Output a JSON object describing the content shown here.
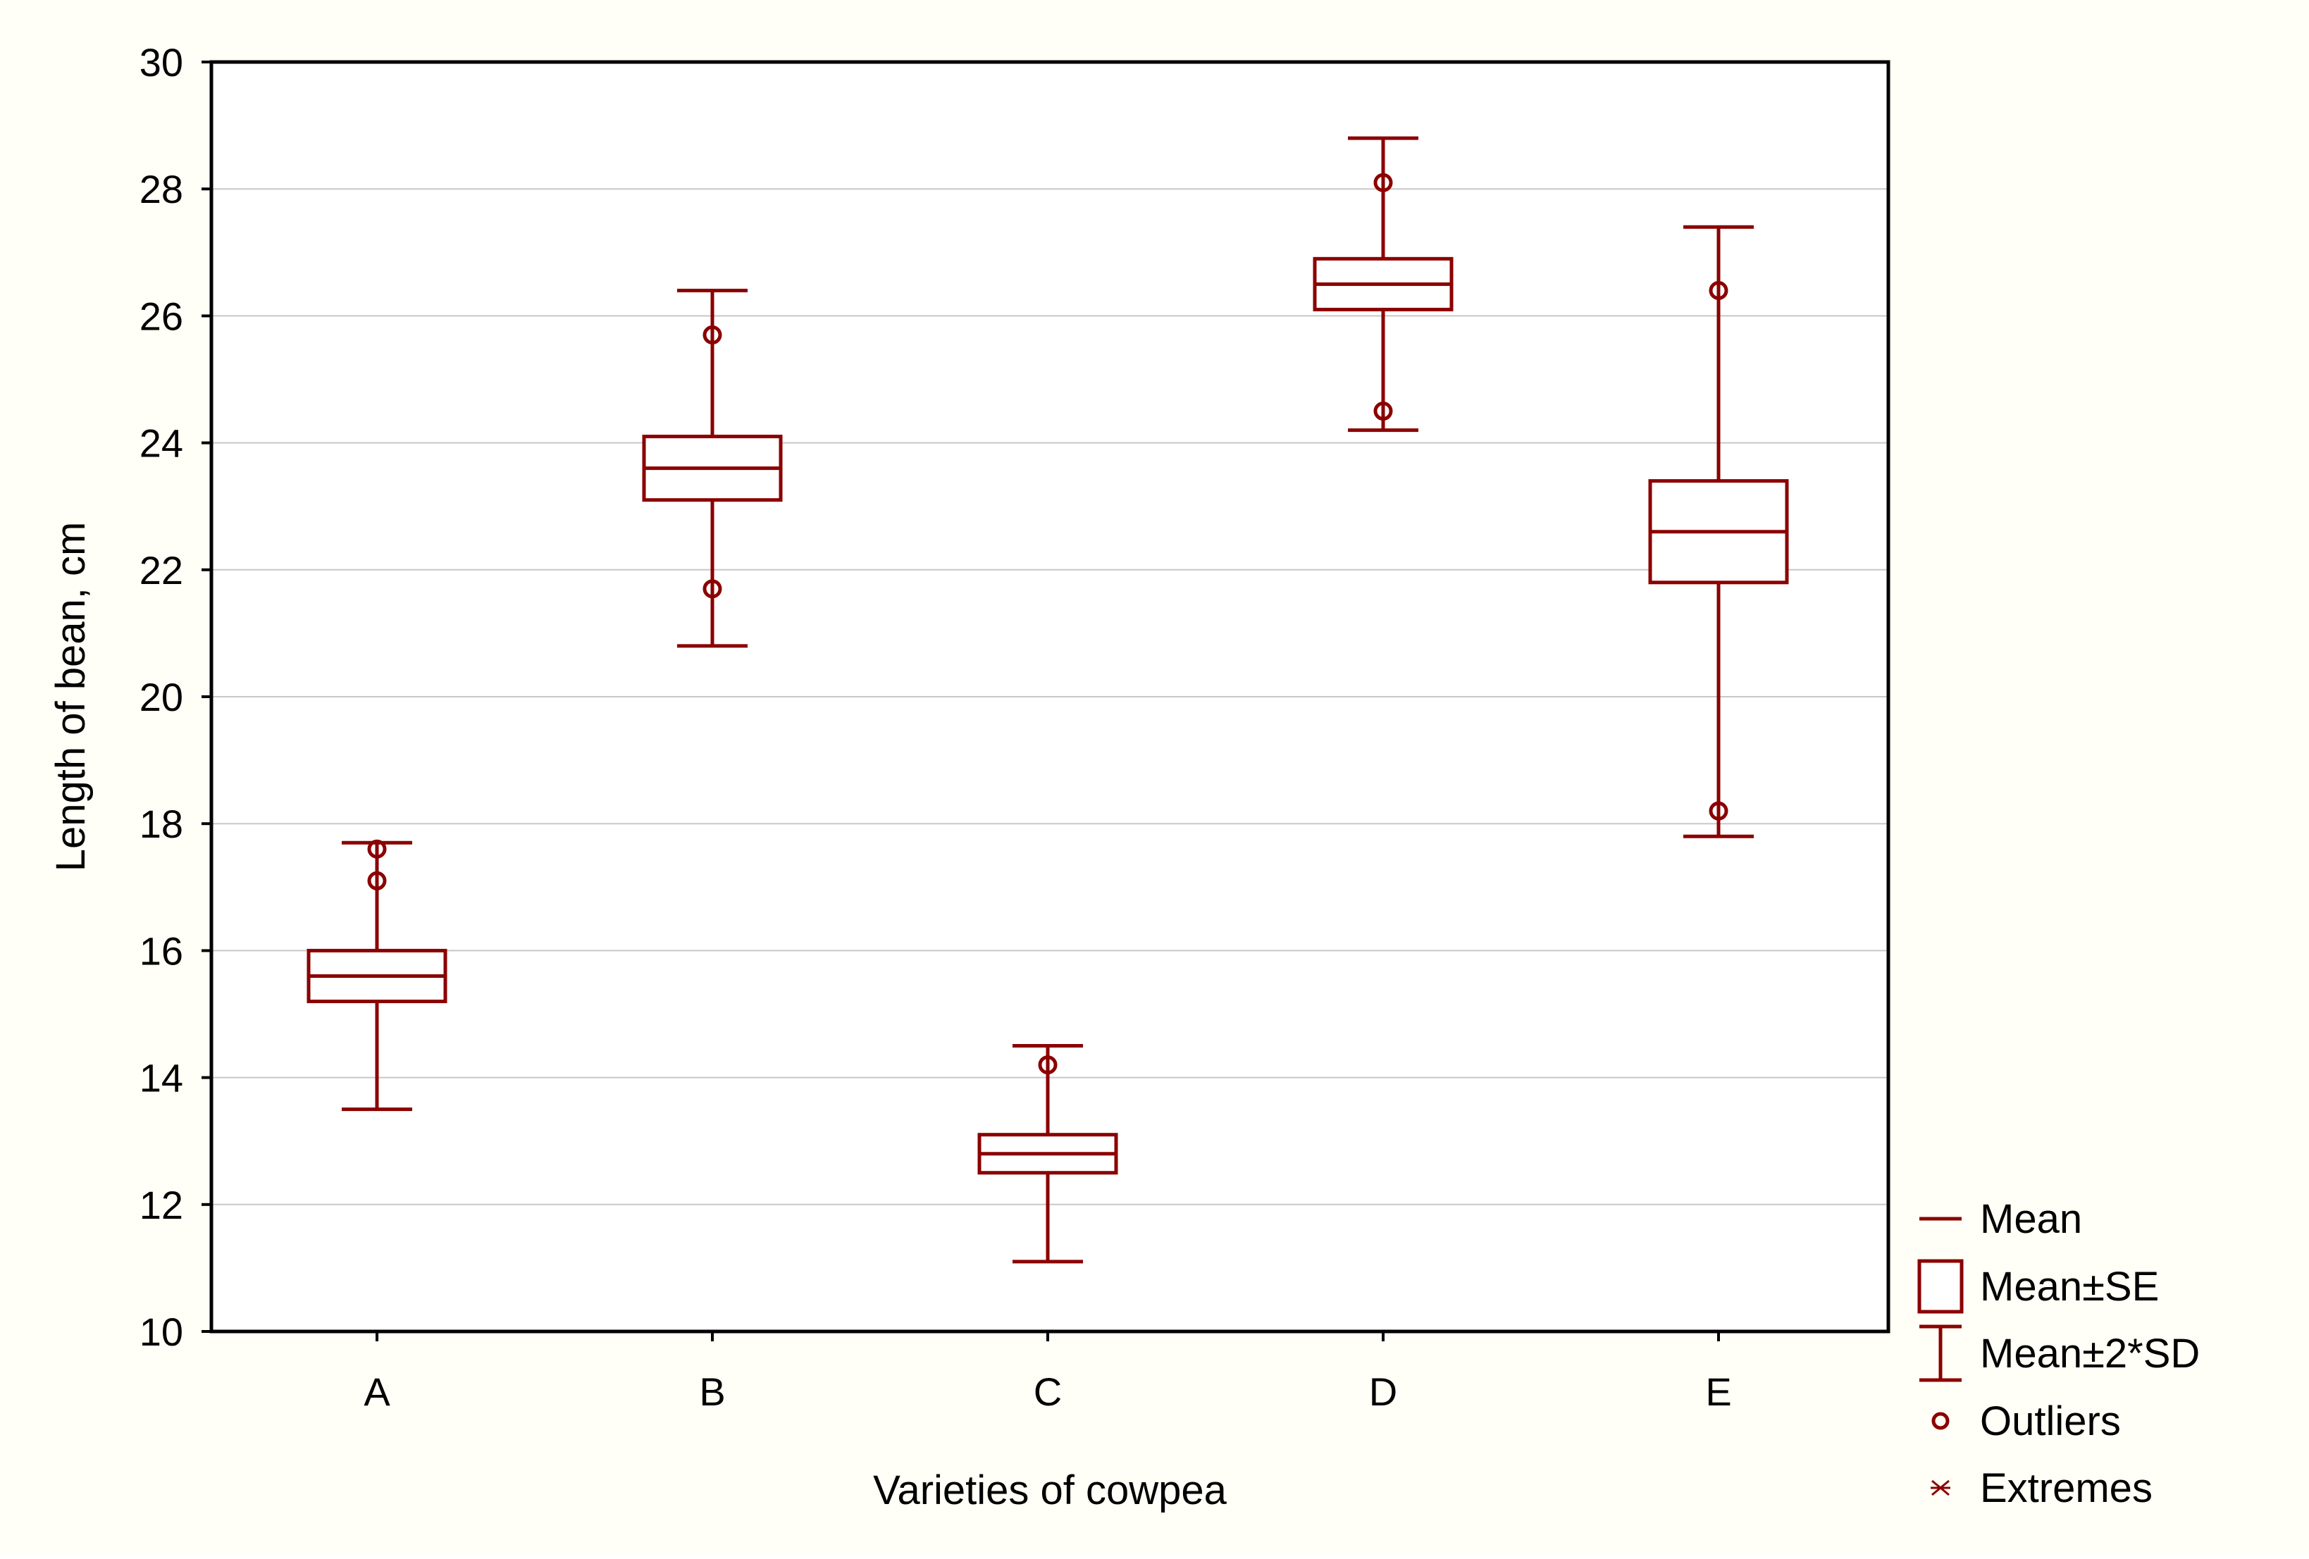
{
  "chart_data": {
    "type": "boxplot",
    "title": "",
    "xlabel": "Varieties of cowpea",
    "ylabel": "Length of bean, cm",
    "ylim": [
      10,
      30
    ],
    "yticks": [
      10,
      12,
      14,
      16,
      18,
      20,
      22,
      24,
      26,
      28,
      30
    ],
    "grid": true,
    "legend_position": "bottom-right outside",
    "categories": [
      "A",
      "B",
      "C",
      "D",
      "E"
    ],
    "series": [
      {
        "name": "A",
        "mean": 15.6,
        "se_low": 15.2,
        "se_high": 16.0,
        "sd2_low": 13.5,
        "sd2_high": 17.7,
        "outliers": [
          17.6,
          17.1
        ]
      },
      {
        "name": "B",
        "mean": 23.6,
        "se_low": 23.1,
        "se_high": 24.1,
        "sd2_low": 20.8,
        "sd2_high": 26.4,
        "outliers": [
          25.7,
          21.7
        ]
      },
      {
        "name": "C",
        "mean": 12.8,
        "se_low": 12.5,
        "se_high": 13.1,
        "sd2_low": 11.1,
        "sd2_high": 14.5,
        "outliers": [
          14.2
        ]
      },
      {
        "name": "D",
        "mean": 26.5,
        "se_low": 26.1,
        "se_high": 26.9,
        "sd2_low": 24.2,
        "sd2_high": 28.8,
        "outliers": [
          28.1,
          24.5
        ]
      },
      {
        "name": "E",
        "mean": 22.6,
        "se_low": 21.8,
        "se_high": 23.4,
        "sd2_low": 17.8,
        "sd2_high": 27.4,
        "outliers": [
          26.4,
          18.2
        ]
      }
    ],
    "legend": [
      {
        "key": "mean",
        "label": "Mean"
      },
      {
        "key": "se",
        "label": "Mean±SE"
      },
      {
        "key": "sd",
        "label": "Mean±2*SD"
      },
      {
        "key": "outliers",
        "label": "Outliers"
      },
      {
        "key": "extremes",
        "label": "Extremes"
      }
    ],
    "colors": {
      "marks": "#8b0000",
      "gridline": "#c8c8c8",
      "axes": "#000000",
      "plot_background": "#ffffff",
      "page_background": "#fffff7"
    }
  }
}
